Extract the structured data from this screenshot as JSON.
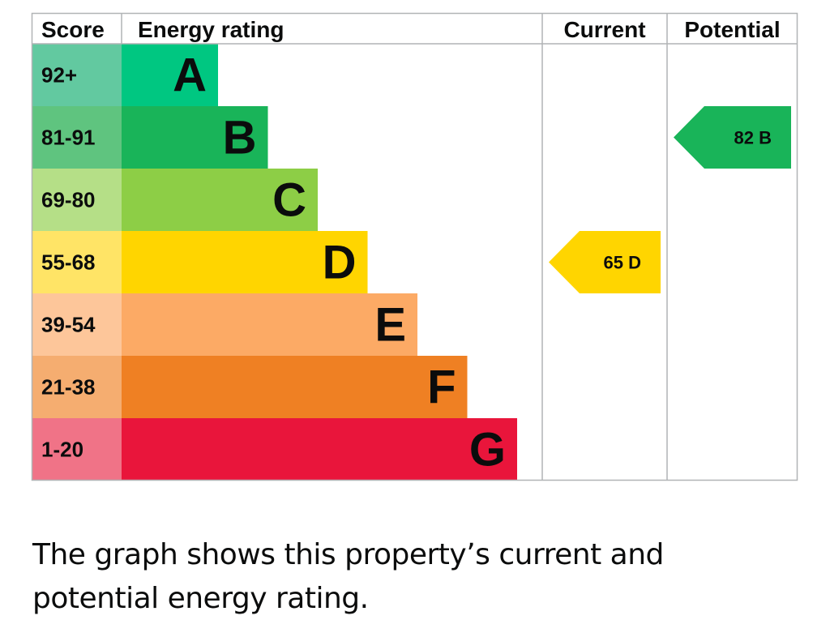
{
  "chart_data": {
    "type": "bar",
    "columns": {
      "score": "Score",
      "rating": "Energy rating",
      "current": "Current",
      "potential": "Potential"
    },
    "bands": [
      {
        "letter": "A",
        "range": "92+",
        "color": "#00c781",
        "score_color": "#62c9a0"
      },
      {
        "letter": "B",
        "range": "81-91",
        "color": "#19b459",
        "score_color": "#5fc47f"
      },
      {
        "letter": "C",
        "range": "69-80",
        "color": "#8dce46",
        "score_color": "#b5df87"
      },
      {
        "letter": "D",
        "range": "55-68",
        "color": "#ffd500",
        "score_color": "#ffe466"
      },
      {
        "letter": "E",
        "range": "39-54",
        "color": "#fcaa65",
        "score_color": "#fdc69a"
      },
      {
        "letter": "F",
        "range": "21-38",
        "color": "#ef8023",
        "score_color": "#f5ad70"
      },
      {
        "letter": "G",
        "range": "1-20",
        "color": "#e9153b",
        "score_color": "#f07387"
      }
    ],
    "current": {
      "value": 65,
      "band": "D"
    },
    "potential": {
      "value": 82,
      "band": "B"
    }
  },
  "caption": "The graph shows this property’s current and potential energy rating."
}
